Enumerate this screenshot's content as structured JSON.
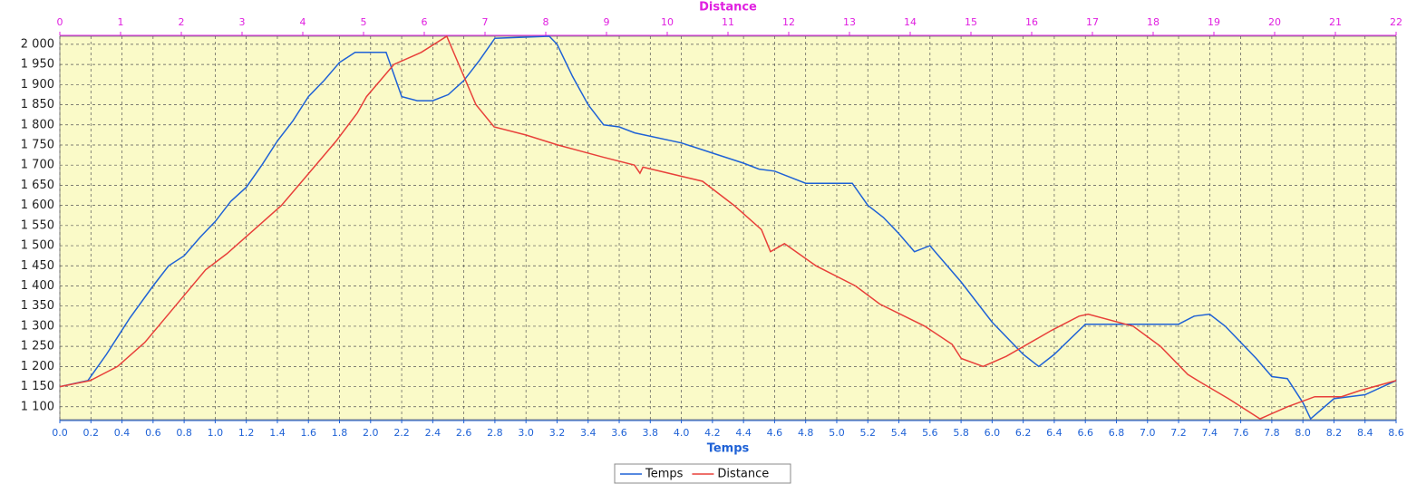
{
  "chart_data": {
    "type": "line",
    "x_label": "Temps",
    "x2_label": "Distance",
    "xlim": [
      0,
      8.6
    ],
    "xticks": [
      {
        "value": 0,
        "label": "0.0"
      },
      0.2,
      0.4,
      0.6,
      0.8,
      {
        "value": 1,
        "label": "1.0"
      },
      1.2,
      1.4,
      1.6,
      1.8,
      {
        "value": 2,
        "label": "2.0"
      },
      2.2,
      2.4,
      2.6,
      2.8,
      {
        "value": 3,
        "label": "3.0"
      },
      3.2,
      3.4,
      3.6,
      3.8,
      {
        "value": 4,
        "label": "4.0"
      },
      4.2,
      4.4,
      4.6,
      4.8,
      {
        "value": 5,
        "label": "5.0"
      },
      5.2,
      5.4,
      5.6,
      5.8,
      {
        "value": 6,
        "label": "6.0"
      },
      6.2,
      6.4,
      6.6,
      6.8,
      {
        "value": 7,
        "label": "7.0"
      },
      7.2,
      7.4,
      7.6,
      7.8,
      {
        "value": 8,
        "label": "8.0"
      },
      8.2,
      8.4,
      8.6
    ],
    "x2lim": [
      0,
      22
    ],
    "x2ticks": [
      0,
      1,
      2,
      3,
      4,
      5,
      6,
      7,
      8,
      9,
      10,
      11,
      12,
      13,
      14,
      15,
      16,
      17,
      18,
      19,
      20,
      21,
      22
    ],
    "ylim": [
      1068,
      2020
    ],
    "yticks": [
      {
        "value": 1100,
        "label": "1 100"
      },
      {
        "value": 1150,
        "label": "1 150"
      },
      {
        "value": 1200,
        "label": "1 200"
      },
      {
        "value": 1250,
        "label": "1 250"
      },
      {
        "value": 1300,
        "label": "1 300"
      },
      {
        "value": 1350,
        "label": "1 350"
      },
      {
        "value": 1400,
        "label": "1 400"
      },
      {
        "value": 1450,
        "label": "1 450"
      },
      {
        "value": 1500,
        "label": "1 500"
      },
      {
        "value": 1550,
        "label": "1 550"
      },
      {
        "value": 1600,
        "label": "1 600"
      },
      {
        "value": 1650,
        "label": "1 650"
      },
      {
        "value": 1700,
        "label": "1 700"
      },
      {
        "value": 1750,
        "label": "1 750"
      },
      {
        "value": 1800,
        "label": "1 800"
      },
      {
        "value": 1850,
        "label": "1 850"
      },
      {
        "value": 1900,
        "label": "1 900"
      },
      {
        "value": 1950,
        "label": "1 950"
      },
      {
        "value": 2000,
        "label": "2 000"
      }
    ],
    "grid": true,
    "series": [
      {
        "name": "Temps",
        "color": "#1f62d6",
        "axis": "x",
        "x": [
          0,
          0.18,
          0.3,
          0.45,
          0.6,
          0.7,
          0.8,
          0.9,
          1.0,
          1.1,
          1.2,
          1.3,
          1.4,
          1.5,
          1.6,
          1.7,
          1.8,
          1.9,
          2.1,
          2.2,
          2.3,
          2.4,
          2.5,
          2.6,
          2.7,
          2.8,
          3.15,
          3.2,
          3.3,
          3.4,
          3.5,
          3.6,
          3.7,
          4.0,
          4.2,
          4.4,
          4.5,
          4.6,
          4.8,
          5.1,
          5.2,
          5.3,
          5.4,
          5.5,
          5.6,
          5.8,
          6.0,
          6.2,
          6.3,
          6.4,
          6.6,
          7.2,
          7.3,
          7.4,
          7.5,
          7.7,
          7.8,
          7.9,
          8.0,
          8.05,
          8.2,
          8.4,
          8.6
        ],
        "values": [
          1150,
          1165,
          1230,
          1320,
          1400,
          1450,
          1475,
          1520,
          1560,
          1610,
          1645,
          1700,
          1760,
          1810,
          1870,
          1910,
          1955,
          1980,
          1980,
          1870,
          1860,
          1860,
          1875,
          1910,
          1960,
          2015,
          2020,
          2000,
          1920,
          1850,
          1800,
          1795,
          1780,
          1755,
          1730,
          1705,
          1690,
          1685,
          1655,
          1655,
          1600,
          1570,
          1530,
          1485,
          1500,
          1410,
          1310,
          1230,
          1200,
          1230,
          1305,
          1305,
          1325,
          1330,
          1300,
          1220,
          1175,
          1170,
          1110,
          1070,
          1120,
          1130,
          1165
        ]
      },
      {
        "name": "Distance",
        "color": "#e8403a",
        "axis": "x2",
        "x": [
          0,
          0.5,
          0.95,
          1.4,
          1.9,
          2.4,
          2.75,
          3.2,
          3.65,
          4.1,
          4.55,
          4.9,
          5.05,
          5.5,
          5.95,
          6.37,
          6.85,
          7.15,
          7.67,
          8.2,
          8.94,
          9.46,
          9.55,
          9.6,
          10.58,
          11.1,
          11.55,
          11.7,
          11.93,
          12.45,
          13.1,
          13.5,
          14.24,
          14.69,
          14.84,
          15.2,
          15.58,
          16.33,
          16.78,
          16.93,
          17.67,
          18.12,
          18.57,
          18.79,
          19.24,
          19.76,
          20.21,
          20.66,
          21.1,
          21.4,
          22
        ],
        "values": [
          1150,
          1165,
          1200,
          1260,
          1350,
          1440,
          1480,
          1540,
          1600,
          1680,
          1760,
          1830,
          1870,
          1950,
          1980,
          2020,
          1850,
          1795,
          1775,
          1750,
          1720,
          1700,
          1680,
          1695,
          1660,
          1600,
          1540,
          1485,
          1505,
          1450,
          1400,
          1355,
          1300,
          1255,
          1220,
          1200,
          1225,
          1290,
          1325,
          1330,
          1300,
          1250,
          1180,
          1160,
          1120,
          1070,
          1100,
          1125,
          1125,
          1140,
          1165
        ]
      }
    ]
  }
}
